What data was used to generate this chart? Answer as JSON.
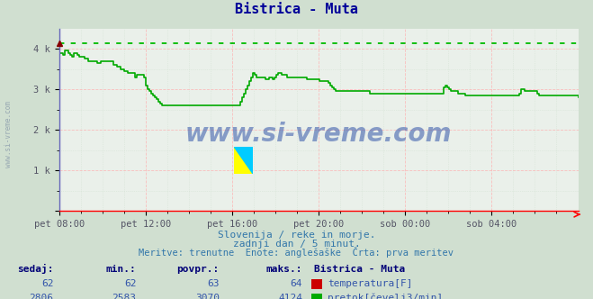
{
  "title": "Bistrica - Muta",
  "title_color": "#000099",
  "bg_color": "#d0dfd0",
  "plot_bg_color": "#eaf0ea",
  "grid_color_major": "#ffaaaa",
  "grid_color_minor": "#ccddcc",
  "x_labels": [
    "pet 08:00",
    "pet 12:00",
    "pet 16:00",
    "pet 20:00",
    "sob 00:00",
    "sob 04:00"
  ],
  "x_positions": [
    0,
    48,
    96,
    144,
    192,
    240
  ],
  "y_ticks": [
    0,
    1000,
    2000,
    3000,
    4000
  ],
  "y_tick_labels": [
    "",
    "1 k",
    "2 k",
    "3 k",
    "4 k"
  ],
  "ylim": [
    0,
    4500
  ],
  "xlim": [
    0,
    288
  ],
  "dotted_line_value": 4124,
  "dotted_line_color": "#00bb00",
  "flow_color": "#00aa00",
  "temp_color": "#cc0000",
  "watermark_text": "www.si-vreme.com",
  "watermark_color": "#3355aa",
  "subtitle1": "Slovenija / reke in morje.",
  "subtitle2": "zadnji dan / 5 minut.",
  "subtitle3": "Meritve: trenutne  Enote: anglešaške  Črta: prva meritev",
  "subtitle_color": "#3377aa",
  "table_header_color": "#000077",
  "table_value_color": "#3355aa",
  "left_label": "www.si-vreme.com",
  "flow_data": [
    3900,
    3900,
    3850,
    3950,
    3950,
    3900,
    3850,
    3800,
    3900,
    3900,
    3850,
    3800,
    3800,
    3800,
    3750,
    3750,
    3700,
    3700,
    3700,
    3700,
    3700,
    3650,
    3650,
    3700,
    3700,
    3700,
    3700,
    3700,
    3700,
    3700,
    3600,
    3600,
    3550,
    3550,
    3500,
    3500,
    3450,
    3450,
    3400,
    3400,
    3400,
    3400,
    3300,
    3350,
    3350,
    3350,
    3350,
    3300,
    3100,
    3000,
    2950,
    2900,
    2850,
    2800,
    2750,
    2700,
    2650,
    2600,
    2600,
    2600,
    2600,
    2600,
    2600,
    2600,
    2600,
    2600,
    2600,
    2600,
    2600,
    2600,
    2600,
    2600,
    2600,
    2600,
    2600,
    2600,
    2600,
    2600,
    2600,
    2600,
    2600,
    2600,
    2600,
    2600,
    2600,
    2600,
    2600,
    2600,
    2600,
    2600,
    2600,
    2600,
    2600,
    2600,
    2600,
    2600,
    2600,
    2600,
    2600,
    2600,
    2600,
    2700,
    2800,
    2900,
    3000,
    3100,
    3200,
    3300,
    3400,
    3350,
    3300,
    3300,
    3300,
    3300,
    3300,
    3250,
    3250,
    3300,
    3300,
    3250,
    3300,
    3350,
    3400,
    3400,
    3350,
    3350,
    3350,
    3300,
    3300,
    3300,
    3300,
    3300,
    3300,
    3300,
    3300,
    3300,
    3300,
    3300,
    3250,
    3250,
    3250,
    3250,
    3250,
    3250,
    3250,
    3200,
    3200,
    3200,
    3200,
    3200,
    3150,
    3100,
    3050,
    3000,
    2950,
    2950,
    2950,
    2950,
    2950,
    2950,
    2950,
    2950,
    2950,
    2950,
    2950,
    2950,
    2950,
    2950,
    2950,
    2950,
    2950,
    2950,
    2950,
    2900,
    2900,
    2900,
    2900,
    2900,
    2900,
    2900,
    2900,
    2900,
    2900,
    2900,
    2900,
    2900,
    2900,
    2900,
    2900,
    2900,
    2900,
    2900,
    2900,
    2900,
    2900,
    2900,
    2900,
    2900,
    2900,
    2900,
    2900,
    2900,
    2900,
    2900,
    2900,
    2900,
    2900,
    2900,
    2900,
    2900,
    2900,
    2900,
    2900,
    2900,
    3050,
    3100,
    3050,
    3000,
    2950,
    2950,
    2950,
    2950,
    2900,
    2900,
    2900,
    2900,
    2850,
    2850,
    2850,
    2850,
    2850,
    2850,
    2850,
    2850,
    2850,
    2850,
    2850,
    2850,
    2850,
    2850,
    2850,
    2850,
    2850,
    2850,
    2850,
    2850,
    2850,
    2850,
    2850,
    2850,
    2850,
    2850,
    2850,
    2850,
    2850,
    2850,
    2900,
    3000,
    3000,
    2950,
    2950,
    2950,
    2950,
    2950,
    2950,
    2950,
    2900,
    2850,
    2850,
    2850,
    2850,
    2850,
    2850,
    2850,
    2850,
    2850,
    2850,
    2850,
    2850,
    2850,
    2850,
    2850,
    2850,
    2850,
    2850,
    2850,
    2850,
    2850,
    2850,
    2800
  ],
  "sedaj_temp": 62,
  "min_temp": 62,
  "povpr_temp": 63,
  "maks_temp": 64,
  "sedaj_flow": 2806,
  "min_flow": 2583,
  "povpr_flow": 3070,
  "maks_flow": 4124
}
